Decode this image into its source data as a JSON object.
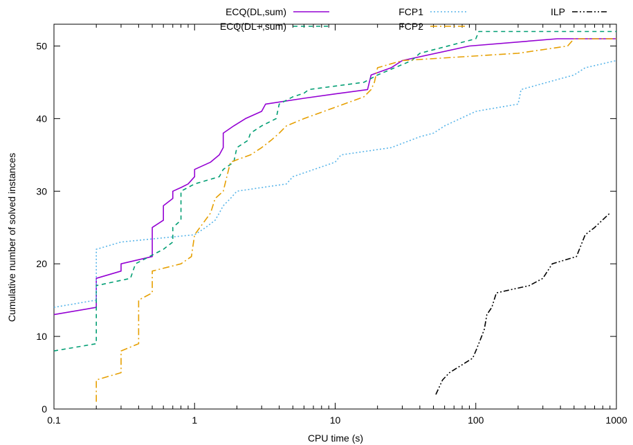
{
  "chart_data": {
    "type": "line",
    "xlabel": "CPU time (s)",
    "ylabel": "Cumulative number of solved instances",
    "xscale": "log",
    "xlim": [
      0.1,
      1000
    ],
    "ylim": [
      0,
      53
    ],
    "x_ticks": [
      {
        "value": 0.1,
        "label": "0.1"
      },
      {
        "value": 1,
        "label": "1"
      },
      {
        "value": 10,
        "label": "10"
      },
      {
        "value": 100,
        "label": "100"
      },
      {
        "value": 1000,
        "label": "1000"
      }
    ],
    "y_ticks": [
      0,
      10,
      20,
      30,
      40,
      50
    ],
    "grid": false,
    "legend_position": "top",
    "series": [
      {
        "name": "ECQ(DL,sum)",
        "color": "#9400d3",
        "dash": "solid",
        "points": [
          [
            0.1,
            13
          ],
          [
            0.2,
            14
          ],
          [
            0.2,
            18
          ],
          [
            0.3,
            19
          ],
          [
            0.3,
            20
          ],
          [
            0.5,
            21
          ],
          [
            0.5,
            25
          ],
          [
            0.6,
            26
          ],
          [
            0.6,
            28
          ],
          [
            0.7,
            29
          ],
          [
            0.7,
            30
          ],
          [
            0.8,
            30.5
          ],
          [
            0.9,
            31
          ],
          [
            1.0,
            32
          ],
          [
            1.0,
            33
          ],
          [
            1.3,
            34
          ],
          [
            1.5,
            35
          ],
          [
            1.6,
            36
          ],
          [
            1.6,
            38
          ],
          [
            1.9,
            39
          ],
          [
            2.3,
            40
          ],
          [
            3.0,
            41
          ],
          [
            3.2,
            42
          ],
          [
            6,
            42.8
          ],
          [
            10,
            43.4
          ],
          [
            17,
            44
          ],
          [
            18,
            46
          ],
          [
            25,
            47
          ],
          [
            30,
            48
          ],
          [
            90,
            50
          ],
          [
            380,
            51
          ],
          [
            1000,
            51
          ]
        ]
      },
      {
        "name": "ECQ(DL+,sum)",
        "color": "#009e73",
        "dash": "dashed",
        "points": [
          [
            0.1,
            8
          ],
          [
            0.2,
            9
          ],
          [
            0.2,
            17
          ],
          [
            0.35,
            18
          ],
          [
            0.38,
            20
          ],
          [
            0.6,
            22
          ],
          [
            0.7,
            23
          ],
          [
            0.7,
            25
          ],
          [
            0.8,
            26
          ],
          [
            0.8,
            30
          ],
          [
            1.0,
            31
          ],
          [
            1.5,
            32
          ],
          [
            1.6,
            33
          ],
          [
            1.9,
            34
          ],
          [
            2.0,
            36
          ],
          [
            2.4,
            37
          ],
          [
            2.5,
            38
          ],
          [
            3.0,
            39
          ],
          [
            3.8,
            40
          ],
          [
            4.0,
            42
          ],
          [
            5.0,
            43
          ],
          [
            6.0,
            43.5
          ],
          [
            6.5,
            44
          ],
          [
            16,
            45
          ],
          [
            20,
            46
          ],
          [
            35,
            48
          ],
          [
            40,
            49
          ],
          [
            100,
            51
          ],
          [
            105,
            52
          ],
          [
            1000,
            52
          ]
        ]
      },
      {
        "name": "FCP1",
        "color": "#56b4e9",
        "dash": "dotted",
        "points": [
          [
            0.1,
            14
          ],
          [
            0.2,
            15
          ],
          [
            0.2,
            22
          ],
          [
            0.3,
            23
          ],
          [
            1.0,
            24
          ],
          [
            1.2,
            25
          ],
          [
            1.4,
            26
          ],
          [
            1.5,
            27
          ],
          [
            1.6,
            28
          ],
          [
            1.8,
            29
          ],
          [
            2.0,
            30
          ],
          [
            3.0,
            30.5
          ],
          [
            4.5,
            31
          ],
          [
            5.0,
            32
          ],
          [
            10,
            34
          ],
          [
            11,
            35
          ],
          [
            25,
            36
          ],
          [
            40,
            37.5
          ],
          [
            50,
            38
          ],
          [
            60,
            39
          ],
          [
            100,
            41
          ],
          [
            200,
            42
          ],
          [
            210,
            44
          ],
          [
            400,
            45.5
          ],
          [
            500,
            46
          ],
          [
            600,
            47
          ],
          [
            1000,
            48
          ]
        ]
      },
      {
        "name": "FCP2",
        "color": "#e69f00",
        "dash": "dashdot",
        "points": [
          [
            0.2,
            1
          ],
          [
            0.2,
            4
          ],
          [
            0.3,
            5
          ],
          [
            0.3,
            8
          ],
          [
            0.4,
            9
          ],
          [
            0.4,
            15
          ],
          [
            0.5,
            16
          ],
          [
            0.5,
            19
          ],
          [
            0.8,
            20
          ],
          [
            0.95,
            21
          ],
          [
            1.0,
            24
          ],
          [
            1.3,
            27
          ],
          [
            1.4,
            29
          ],
          [
            1.6,
            30
          ],
          [
            1.8,
            34
          ],
          [
            2.5,
            35
          ],
          [
            3.0,
            36
          ],
          [
            3.5,
            37
          ],
          [
            4.0,
            38
          ],
          [
            4.5,
            39
          ],
          [
            6.0,
            40
          ],
          [
            16,
            43
          ],
          [
            18,
            44
          ],
          [
            19,
            45
          ],
          [
            20,
            47
          ],
          [
            30,
            48
          ],
          [
            200,
            49
          ],
          [
            450,
            50
          ],
          [
            500,
            51
          ],
          [
            1000,
            51
          ]
        ]
      },
      {
        "name": "ILP",
        "color": "#000000",
        "dash": "dashdotdot",
        "points": [
          [
            52,
            2
          ],
          [
            58,
            4
          ],
          [
            65,
            5
          ],
          [
            95,
            7
          ],
          [
            100,
            8
          ],
          [
            110,
            10
          ],
          [
            115,
            11
          ],
          [
            120,
            13
          ],
          [
            130,
            14
          ],
          [
            140,
            16
          ],
          [
            240,
            17
          ],
          [
            300,
            18
          ],
          [
            350,
            20
          ],
          [
            520,
            21
          ],
          [
            600,
            24
          ],
          [
            700,
            25
          ],
          [
            900,
            27
          ]
        ]
      }
    ]
  }
}
